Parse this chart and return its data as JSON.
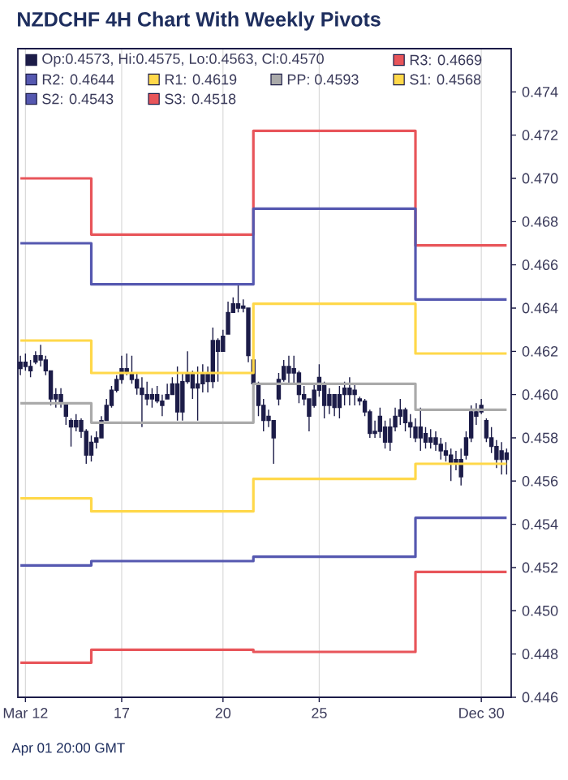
{
  "chart_data": {
    "type": "candlestick",
    "title": "NZDCHF 4H Chart With Weekly Pivots",
    "annotations": [
      "Apr 01 20:00 GMT"
    ],
    "categories": [
      null,
      "Mar 12",
      null,
      null,
      null,
      null,
      null,
      null,
      null,
      null,
      null,
      null,
      null,
      null,
      null,
      null,
      null,
      null,
      null,
      null,
      "17",
      null,
      null,
      null,
      null,
      null,
      null,
      null,
      null,
      null,
      null,
      null,
      null,
      null,
      null,
      null,
      null,
      null,
      null,
      null,
      "20",
      null,
      null,
      null,
      null,
      null,
      null,
      null,
      null,
      null,
      null,
      null,
      null,
      null,
      null,
      null,
      null,
      null,
      null,
      "25",
      null,
      null,
      null,
      null,
      null,
      null,
      null,
      null,
      null,
      null,
      null,
      null,
      null,
      null,
      null,
      null,
      null,
      null,
      null,
      null,
      null,
      null,
      null,
      null,
      null,
      null,
      null,
      null,
      null,
      null,
      null,
      "Dec 30",
      null,
      null,
      null,
      null,
      null
    ],
    "ylim": [
      0.446,
      0.476
    ],
    "yticks": [
      0.446,
      0.448,
      {
        "value": 0.45,
        "label": "0.450"
      },
      0.452,
      0.454,
      0.456,
      0.458,
      {
        "value": 0.46,
        "label": "0.460"
      },
      0.462,
      0.464,
      0.466,
      0.468,
      {
        "value": 0.47,
        "label": "0.470"
      },
      0.472,
      0.474
    ],
    "grid": "x",
    "legend": "top",
    "series": [
      {
        "name": "Op:0.4573, Hi:0.4575, Lo:0.4563, Cl:0.4570",
        "color": "#1c1c48",
        "ohlc": [
          [
            0.4612,
            0.4618,
            0.4609,
            0.4615
          ],
          [
            0.4615,
            0.4619,
            0.4611,
            0.4613
          ],
          [
            0.4613,
            0.4616,
            0.4608,
            0.4611
          ],
          [
            0.4615,
            0.462,
            0.4614,
            0.4618
          ],
          [
            0.4618,
            0.4623,
            0.4613,
            0.4616
          ],
          [
            0.4616,
            0.4618,
            0.4609,
            0.4611
          ],
          [
            0.4611,
            0.4611,
            0.4595,
            0.4598
          ],
          [
            0.4598,
            0.4603,
            0.4594,
            0.46
          ],
          [
            0.46,
            0.4603,
            0.4594,
            0.4596
          ],
          [
            0.4596,
            0.4596,
            0.4586,
            0.459
          ],
          [
            0.4588,
            0.4589,
            0.4576,
            0.4585
          ],
          [
            0.4585,
            0.4591,
            0.4583,
            0.4588
          ],
          [
            0.4588,
            0.4589,
            0.458,
            0.4583
          ],
          [
            0.4583,
            0.4584,
            0.4568,
            0.4572
          ],
          [
            0.4572,
            0.4581,
            0.4569,
            0.4578
          ],
          [
            0.4578,
            0.4583,
            0.4575,
            0.458
          ],
          [
            0.458,
            0.459,
            0.458,
            0.4588
          ],
          [
            0.4588,
            0.4598,
            0.4588,
            0.4595
          ],
          [
            0.4595,
            0.4604,
            0.4594,
            0.4602
          ],
          [
            0.4602,
            0.4609,
            0.4601,
            0.4607
          ],
          [
            0.4607,
            0.4618,
            0.4605,
            0.4612
          ],
          [
            0.4612,
            0.4619,
            0.4609,
            0.461
          ],
          [
            0.461,
            0.4618,
            0.4605,
            0.4607
          ],
          [
            0.4607,
            0.461,
            0.46,
            0.4603
          ],
          [
            0.4603,
            0.4608,
            0.4585,
            0.46
          ],
          [
            0.46,
            0.4606,
            0.4595,
            0.4598
          ],
          [
            0.4598,
            0.4603,
            0.4594,
            0.46
          ],
          [
            0.46,
            0.4604,
            0.4596,
            0.4597
          ],
          [
            0.4597,
            0.46,
            0.459,
            0.4595
          ],
          [
            0.4598,
            0.4605,
            0.4598,
            0.46
          ],
          [
            0.46,
            0.4608,
            0.46,
            0.4605
          ],
          [
            0.4605,
            0.4613,
            0.4588,
            0.4592
          ],
          [
            0.4592,
            0.461,
            0.4588,
            0.4606
          ],
          [
            0.4606,
            0.462,
            0.4605,
            0.461
          ],
          [
            0.461,
            0.4611,
            0.4598,
            0.4603
          ],
          [
            0.4603,
            0.4613,
            0.4588,
            0.4605
          ],
          [
            0.4605,
            0.4614,
            0.4601,
            0.461
          ],
          [
            0.461,
            0.4613,
            0.4601,
            0.4606
          ],
          [
            0.4606,
            0.4631,
            0.4603,
            0.4625
          ],
          [
            0.4625,
            0.4626,
            0.4606,
            0.462
          ],
          [
            0.462,
            0.463,
            0.462,
            0.4627
          ],
          [
            0.4628,
            0.4643,
            0.4628,
            0.4638
          ],
          [
            0.4638,
            0.4645,
            0.4638,
            0.4642
          ],
          [
            0.4642,
            0.4651,
            0.4638,
            0.464
          ],
          [
            0.464,
            0.4644,
            0.4638,
            0.4641
          ],
          [
            0.464,
            0.464,
            0.4615,
            0.4618
          ],
          [
            0.4616,
            0.4616,
            0.4601,
            0.4605
          ],
          [
            0.4605,
            0.4606,
            0.459,
            0.4595
          ],
          [
            0.4595,
            0.4598,
            0.4583,
            0.4588
          ],
          [
            0.4588,
            0.4593,
            0.4585,
            0.459
          ],
          [
            0.4588,
            0.4588,
            0.4568,
            0.458
          ],
          [
            0.4598,
            0.461,
            0.4595,
            0.4607
          ],
          [
            0.4607,
            0.4616,
            0.4606,
            0.4613
          ],
          [
            0.4613,
            0.4618,
            0.4605,
            0.461
          ],
          [
            0.461,
            0.4618,
            0.4605,
            0.4612
          ],
          [
            0.461,
            0.4611,
            0.4596,
            0.46
          ],
          [
            0.46,
            0.4604,
            0.4595,
            0.4598
          ],
          [
            0.4598,
            0.4598,
            0.4583,
            0.459
          ],
          [
            0.4595,
            0.4605,
            0.4594,
            0.4602
          ],
          [
            0.4602,
            0.4614,
            0.4599,
            0.4608
          ],
          [
            0.4605,
            0.4606,
            0.4589,
            0.4595
          ],
          [
            0.4595,
            0.4603,
            0.4591,
            0.46
          ],
          [
            0.46,
            0.46,
            0.459,
            0.4594
          ],
          [
            0.4594,
            0.4604,
            0.4589,
            0.46
          ],
          [
            0.46,
            0.4606,
            0.4595,
            0.4603
          ],
          [
            0.4603,
            0.4608,
            0.4595,
            0.46
          ],
          [
            0.46,
            0.4605,
            0.4595,
            0.4602
          ],
          [
            0.4598,
            0.4599,
            0.4595,
            0.4597
          ],
          [
            0.4597,
            0.4598,
            0.459,
            0.4592
          ],
          [
            0.4592,
            0.4593,
            0.458,
            0.4582
          ],
          [
            0.4582,
            0.4588,
            0.458,
            0.4583
          ],
          [
            0.4583,
            0.4594,
            0.458,
            0.459
          ],
          [
            0.4585,
            0.4588,
            0.4575,
            0.4578
          ],
          [
            0.4578,
            0.4589,
            0.4574,
            0.4585
          ],
          [
            0.4585,
            0.4594,
            0.4583,
            0.459
          ],
          [
            0.459,
            0.4598,
            0.4586,
            0.4593
          ],
          [
            0.4593,
            0.4594,
            0.4583,
            0.4587
          ],
          [
            0.4587,
            0.4591,
            0.458,
            0.4585
          ],
          [
            0.4585,
            0.4589,
            0.4578,
            0.458
          ],
          [
            0.458,
            0.4594,
            0.4574,
            0.4585
          ],
          [
            0.4582,
            0.4585,
            0.4575,
            0.4578
          ],
          [
            0.4578,
            0.4584,
            0.4575,
            0.458
          ],
          [
            0.458,
            0.4583,
            0.4574,
            0.4577
          ],
          [
            0.4577,
            0.458,
            0.457,
            0.4574
          ],
          [
            0.4574,
            0.4578,
            0.4569,
            0.4572
          ],
          [
            0.4572,
            0.4575,
            0.456,
            0.4568
          ],
          [
            0.4568,
            0.4574,
            0.4565,
            0.457
          ],
          [
            0.457,
            0.4575,
            0.4558,
            0.4562
          ],
          [
            0.4572,
            0.4583,
            0.457,
            0.458
          ],
          [
            0.458,
            0.4595,
            0.4578,
            0.4592
          ],
          [
            0.4592,
            0.4596,
            0.4586,
            0.459
          ],
          [
            0.4592,
            0.4598,
            0.4591,
            0.4595
          ],
          [
            0.4588,
            0.4589,
            0.4578,
            0.458
          ],
          [
            0.458,
            0.4585,
            0.4573,
            0.4576
          ],
          [
            0.4576,
            0.4579,
            0.4566,
            0.457
          ],
          [
            0.457,
            0.4578,
            0.4563,
            0.4574
          ],
          [
            0.4573,
            0.4575,
            0.4563,
            0.457
          ]
        ]
      },
      {
        "type": "step",
        "name": "R3: 0.4669",
        "color": "#e8555a",
        "values": [
          0.47,
          0.47,
          0.47,
          0.47,
          0.47,
          0.47,
          0.47,
          0.47,
          0.47,
          0.47,
          0.47,
          0.47,
          0.47,
          0.47,
          0.4674,
          0.4674,
          0.4674,
          0.4674,
          0.4674,
          0.4674,
          0.4674,
          0.4674,
          0.4674,
          0.4674,
          0.4674,
          0.4674,
          0.4674,
          0.4674,
          0.4674,
          0.4674,
          0.4674,
          0.4674,
          0.4674,
          0.4674,
          0.4674,
          0.4674,
          0.4674,
          0.4674,
          0.4674,
          0.4674,
          0.4674,
          0.4674,
          0.4674,
          0.4674,
          0.4674,
          0.4674,
          0.4722,
          0.4722,
          0.4722,
          0.4722,
          0.4722,
          0.4722,
          0.4722,
          0.4722,
          0.4722,
          0.4722,
          0.4722,
          0.4722,
          0.4722,
          0.4722,
          0.4722,
          0.4722,
          0.4722,
          0.4722,
          0.4722,
          0.4722,
          0.4722,
          0.4722,
          0.4722,
          0.4722,
          0.4722,
          0.4722,
          0.4722,
          0.4722,
          0.4722,
          0.4722,
          0.4722,
          0.4722,
          0.4669,
          0.4669,
          0.4669,
          0.4669,
          0.4669,
          0.4669,
          0.4669,
          0.4669,
          0.4669,
          0.4669,
          0.4669,
          0.4669,
          0.4669,
          0.4669,
          0.4669,
          0.4669,
          0.4669,
          0.4669,
          0.4669
        ]
      },
      {
        "type": "step",
        "name": "R2: 0.4644",
        "color": "#5558b0",
        "values": [
          0.467,
          0.467,
          0.467,
          0.467,
          0.467,
          0.467,
          0.467,
          0.467,
          0.467,
          0.467,
          0.467,
          0.467,
          0.467,
          0.467,
          0.4651,
          0.4651,
          0.4651,
          0.4651,
          0.4651,
          0.4651,
          0.4651,
          0.4651,
          0.4651,
          0.4651,
          0.4651,
          0.4651,
          0.4651,
          0.4651,
          0.4651,
          0.4651,
          0.4651,
          0.4651,
          0.4651,
          0.4651,
          0.4651,
          0.4651,
          0.4651,
          0.4651,
          0.4651,
          0.4651,
          0.4651,
          0.4651,
          0.4651,
          0.4651,
          0.4651,
          0.4651,
          0.4686,
          0.4686,
          0.4686,
          0.4686,
          0.4686,
          0.4686,
          0.4686,
          0.4686,
          0.4686,
          0.4686,
          0.4686,
          0.4686,
          0.4686,
          0.4686,
          0.4686,
          0.4686,
          0.4686,
          0.4686,
          0.4686,
          0.4686,
          0.4686,
          0.4686,
          0.4686,
          0.4686,
          0.4686,
          0.4686,
          0.4686,
          0.4686,
          0.4686,
          0.4686,
          0.4686,
          0.4686,
          0.4644,
          0.4644,
          0.4644,
          0.4644,
          0.4644,
          0.4644,
          0.4644,
          0.4644,
          0.4644,
          0.4644,
          0.4644,
          0.4644,
          0.4644,
          0.4644,
          0.4644,
          0.4644,
          0.4644,
          0.4644,
          0.4644
        ]
      },
      {
        "type": "step",
        "name": "R1: 0.4619",
        "color": "#ffd84a",
        "values": [
          0.4625,
          0.4625,
          0.4625,
          0.4625,
          0.4625,
          0.4625,
          0.4625,
          0.4625,
          0.4625,
          0.4625,
          0.4625,
          0.4625,
          0.4625,
          0.4625,
          0.461,
          0.461,
          0.461,
          0.461,
          0.461,
          0.461,
          0.461,
          0.461,
          0.461,
          0.461,
          0.461,
          0.461,
          0.461,
          0.461,
          0.461,
          0.461,
          0.461,
          0.461,
          0.461,
          0.461,
          0.461,
          0.461,
          0.461,
          0.461,
          0.461,
          0.461,
          0.461,
          0.461,
          0.461,
          0.461,
          0.461,
          0.461,
          0.4642,
          0.4642,
          0.4642,
          0.4642,
          0.4642,
          0.4642,
          0.4642,
          0.4642,
          0.4642,
          0.4642,
          0.4642,
          0.4642,
          0.4642,
          0.4642,
          0.4642,
          0.4642,
          0.4642,
          0.4642,
          0.4642,
          0.4642,
          0.4642,
          0.4642,
          0.4642,
          0.4642,
          0.4642,
          0.4642,
          0.4642,
          0.4642,
          0.4642,
          0.4642,
          0.4642,
          0.4642,
          0.4619,
          0.4619,
          0.4619,
          0.4619,
          0.4619,
          0.4619,
          0.4619,
          0.4619,
          0.4619,
          0.4619,
          0.4619,
          0.4619,
          0.4619,
          0.4619,
          0.4619,
          0.4619,
          0.4619,
          0.4619,
          0.4619
        ]
      },
      {
        "type": "step",
        "name": "PP: 0.4593",
        "color": "#aaaaaa",
        "values": [
          0.4596,
          0.4596,
          0.4596,
          0.4596,
          0.4596,
          0.4596,
          0.4596,
          0.4596,
          0.4596,
          0.4596,
          0.4596,
          0.4596,
          0.4596,
          0.4596,
          0.4587,
          0.4587,
          0.4587,
          0.4587,
          0.4587,
          0.4587,
          0.4587,
          0.4587,
          0.4587,
          0.4587,
          0.4587,
          0.4587,
          0.4587,
          0.4587,
          0.4587,
          0.4587,
          0.4587,
          0.4587,
          0.4587,
          0.4587,
          0.4587,
          0.4587,
          0.4587,
          0.4587,
          0.4587,
          0.4587,
          0.4587,
          0.4587,
          0.4587,
          0.4587,
          0.4587,
          0.4587,
          0.4605,
          0.4605,
          0.4605,
          0.4605,
          0.4605,
          0.4605,
          0.4605,
          0.4605,
          0.4605,
          0.4605,
          0.4605,
          0.4605,
          0.4605,
          0.4605,
          0.4605,
          0.4605,
          0.4605,
          0.4605,
          0.4605,
          0.4605,
          0.4605,
          0.4605,
          0.4605,
          0.4605,
          0.4605,
          0.4605,
          0.4605,
          0.4605,
          0.4605,
          0.4605,
          0.4605,
          0.4605,
          0.4593,
          0.4593,
          0.4593,
          0.4593,
          0.4593,
          0.4593,
          0.4593,
          0.4593,
          0.4593,
          0.4593,
          0.4593,
          0.4593,
          0.4593,
          0.4593,
          0.4593,
          0.4593,
          0.4593,
          0.4593,
          0.4593
        ]
      },
      {
        "type": "step",
        "name": "S1: 0.4568",
        "color": "#ffd84a",
        "values": [
          0.4552,
          0.4552,
          0.4552,
          0.4552,
          0.4552,
          0.4552,
          0.4552,
          0.4552,
          0.4552,
          0.4552,
          0.4552,
          0.4552,
          0.4552,
          0.4552,
          0.4546,
          0.4546,
          0.4546,
          0.4546,
          0.4546,
          0.4546,
          0.4546,
          0.4546,
          0.4546,
          0.4546,
          0.4546,
          0.4546,
          0.4546,
          0.4546,
          0.4546,
          0.4546,
          0.4546,
          0.4546,
          0.4546,
          0.4546,
          0.4546,
          0.4546,
          0.4546,
          0.4546,
          0.4546,
          0.4546,
          0.4546,
          0.4546,
          0.4546,
          0.4546,
          0.4546,
          0.4546,
          0.4561,
          0.4561,
          0.4561,
          0.4561,
          0.4561,
          0.4561,
          0.4561,
          0.4561,
          0.4561,
          0.4561,
          0.4561,
          0.4561,
          0.4561,
          0.4561,
          0.4561,
          0.4561,
          0.4561,
          0.4561,
          0.4561,
          0.4561,
          0.4561,
          0.4561,
          0.4561,
          0.4561,
          0.4561,
          0.4561,
          0.4561,
          0.4561,
          0.4561,
          0.4561,
          0.4561,
          0.4561,
          0.4568,
          0.4568,
          0.4568,
          0.4568,
          0.4568,
          0.4568,
          0.4568,
          0.4568,
          0.4568,
          0.4568,
          0.4568,
          0.4568,
          0.4568,
          0.4568,
          0.4568,
          0.4568,
          0.4568,
          0.4568,
          0.4568
        ]
      },
      {
        "type": "step",
        "name": "S2: 0.4543",
        "color": "#5558b0",
        "values": [
          0.4521,
          0.4521,
          0.4521,
          0.4521,
          0.4521,
          0.4521,
          0.4521,
          0.4521,
          0.4521,
          0.4521,
          0.4521,
          0.4521,
          0.4521,
          0.4521,
          0.4523,
          0.4523,
          0.4523,
          0.4523,
          0.4523,
          0.4523,
          0.4523,
          0.4523,
          0.4523,
          0.4523,
          0.4523,
          0.4523,
          0.4523,
          0.4523,
          0.4523,
          0.4523,
          0.4523,
          0.4523,
          0.4523,
          0.4523,
          0.4523,
          0.4523,
          0.4523,
          0.4523,
          0.4523,
          0.4523,
          0.4523,
          0.4523,
          0.4523,
          0.4523,
          0.4523,
          0.4523,
          0.4525,
          0.4525,
          0.4525,
          0.4525,
          0.4525,
          0.4525,
          0.4525,
          0.4525,
          0.4525,
          0.4525,
          0.4525,
          0.4525,
          0.4525,
          0.4525,
          0.4525,
          0.4525,
          0.4525,
          0.4525,
          0.4525,
          0.4525,
          0.4525,
          0.4525,
          0.4525,
          0.4525,
          0.4525,
          0.4525,
          0.4525,
          0.4525,
          0.4525,
          0.4525,
          0.4525,
          0.4525,
          0.4543,
          0.4543,
          0.4543,
          0.4543,
          0.4543,
          0.4543,
          0.4543,
          0.4543,
          0.4543,
          0.4543,
          0.4543,
          0.4543,
          0.4543,
          0.4543,
          0.4543,
          0.4543,
          0.4543,
          0.4543,
          0.4543
        ]
      },
      {
        "type": "step",
        "name": "S3: 0.4518",
        "color": "#e8555a",
        "values": [
          0.4476,
          0.4476,
          0.4476,
          0.4476,
          0.4476,
          0.4476,
          0.4476,
          0.4476,
          0.4476,
          0.4476,
          0.4476,
          0.4476,
          0.4476,
          0.4476,
          0.4482,
          0.4482,
          0.4482,
          0.4482,
          0.4482,
          0.4482,
          0.4482,
          0.4482,
          0.4482,
          0.4482,
          0.4482,
          0.4482,
          0.4482,
          0.4482,
          0.4482,
          0.4482,
          0.4482,
          0.4482,
          0.4482,
          0.4482,
          0.4482,
          0.4482,
          0.4482,
          0.4482,
          0.4482,
          0.4482,
          0.4482,
          0.4482,
          0.4482,
          0.4482,
          0.4482,
          0.4482,
          0.4481,
          0.4481,
          0.4481,
          0.4481,
          0.4481,
          0.4481,
          0.4481,
          0.4481,
          0.4481,
          0.4481,
          0.4481,
          0.4481,
          0.4481,
          0.4481,
          0.4481,
          0.4481,
          0.4481,
          0.4481,
          0.4481,
          0.4481,
          0.4481,
          0.4481,
          0.4481,
          0.4481,
          0.4481,
          0.4481,
          0.4481,
          0.4481,
          0.4481,
          0.4481,
          0.4481,
          0.4481,
          0.4518,
          0.4518,
          0.4518,
          0.4518,
          0.4518,
          0.4518,
          0.4518,
          0.4518,
          0.4518,
          0.4518,
          0.4518,
          0.4518,
          0.4518,
          0.4518,
          0.4518,
          0.4518,
          0.4518,
          0.4518,
          0.4518
        ]
      }
    ]
  }
}
